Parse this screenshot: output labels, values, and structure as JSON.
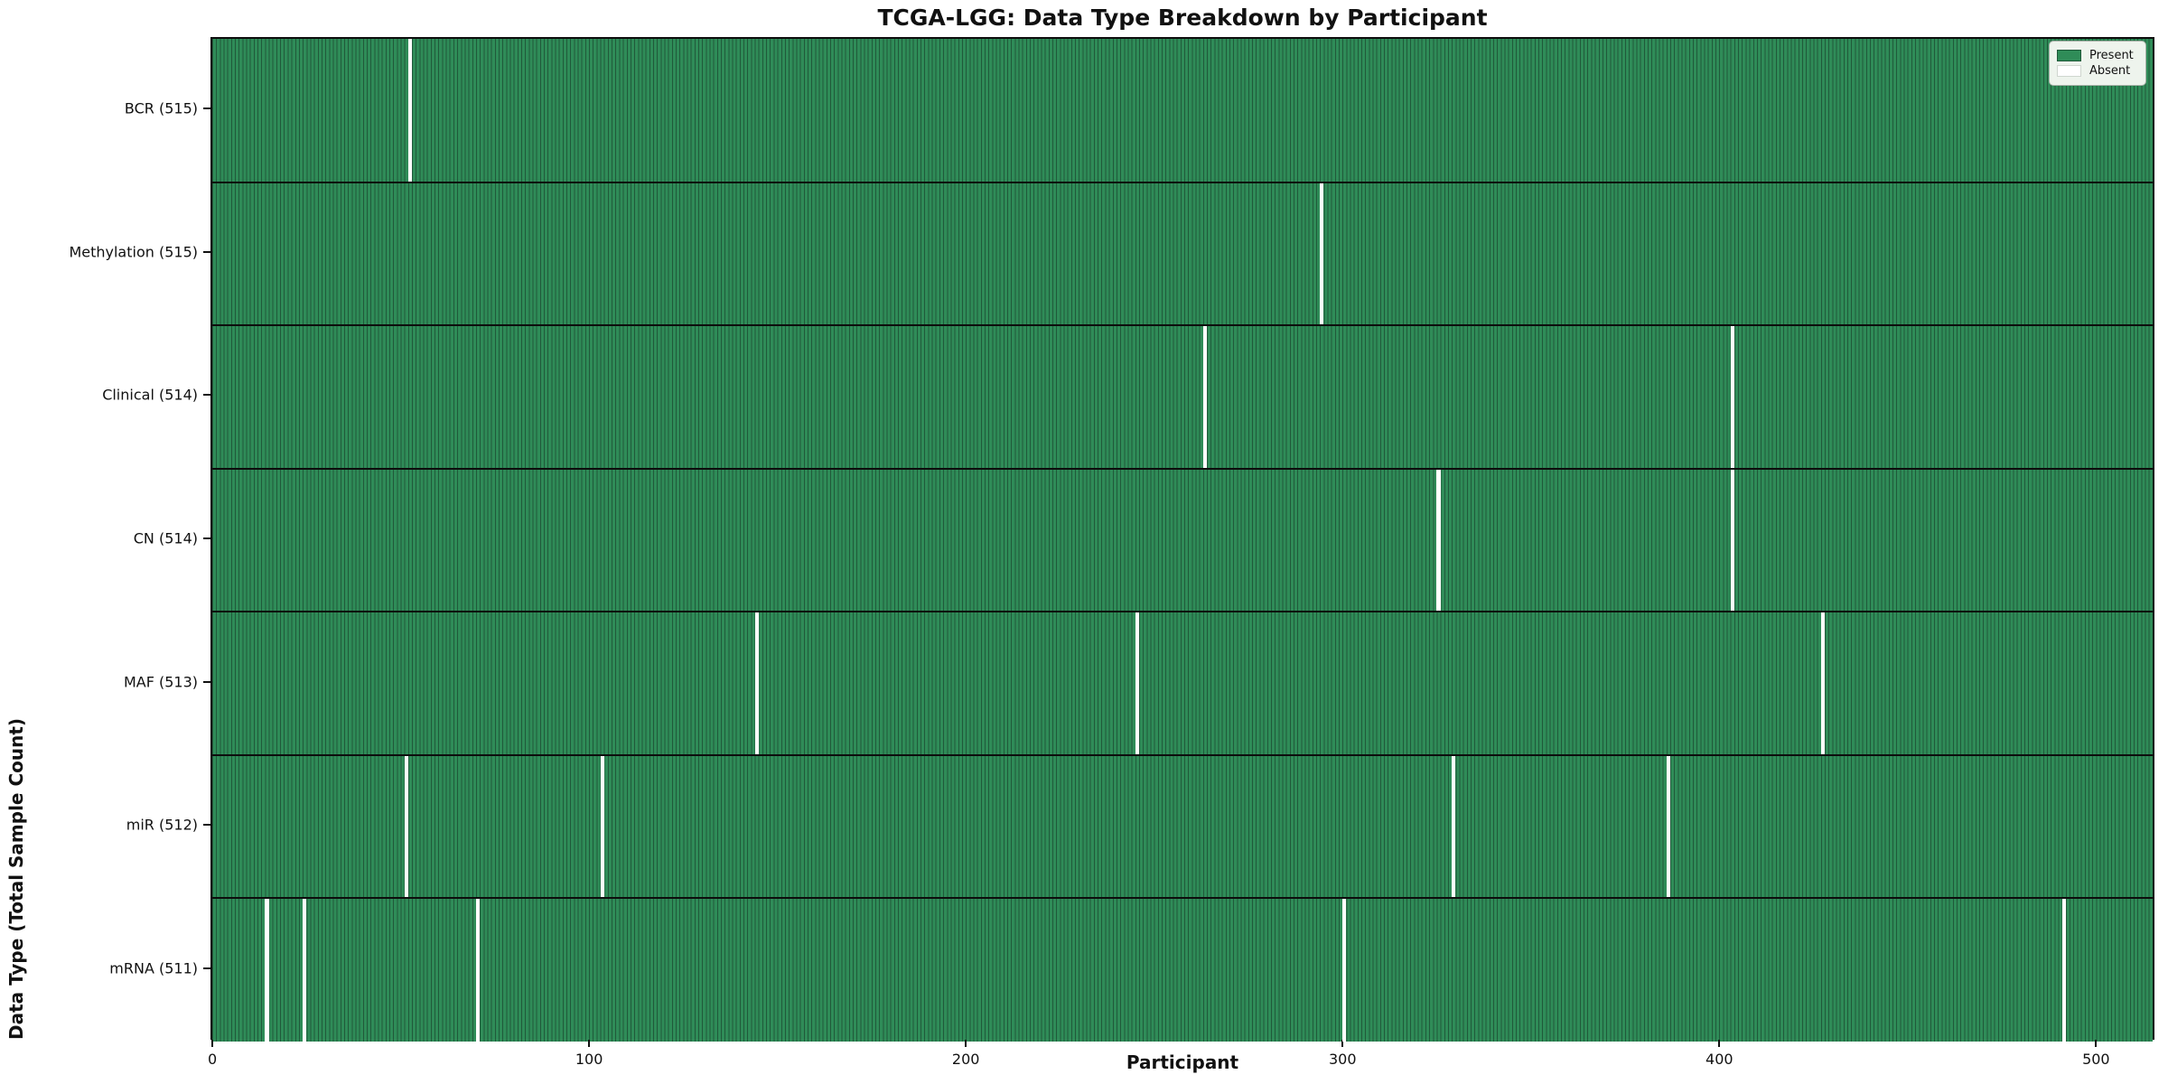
{
  "title": "TCGA-LGG: Data Type Breakdown by Participant",
  "xlabel": "Participant",
  "ylabel": "Data Type (Total Sample Count)",
  "legend": {
    "present_label": "Present",
    "absent_label": "Absent"
  },
  "colors": {
    "present": "#2f8c58",
    "bar_edge": "#20593a",
    "absent": "#ffffff",
    "separator": "#0d0d0d",
    "legend_bg": "#eef4ed",
    "legend_border": "#a9b2a9"
  },
  "chart_data": {
    "type": "heatmap",
    "title": "TCGA-LGG: Data Type Breakdown by Participant",
    "xlabel": "Participant",
    "ylabel": "Data Type (Total Sample Count)",
    "n_participants": 516,
    "xlim": [
      0,
      516
    ],
    "x_ticks": [
      0,
      100,
      200,
      300,
      400,
      500
    ],
    "grid": false,
    "legend_entries": [
      "Present",
      "Absent"
    ],
    "legend_position": "upper right",
    "rows": [
      {
        "label": "BCR (515)",
        "data_type": "BCR",
        "present_count": 515,
        "absent_participants": [
          52
        ]
      },
      {
        "label": "Methylation (515)",
        "data_type": "Methylation",
        "present_count": 515,
        "absent_participants": [
          294
        ]
      },
      {
        "label": "Clinical (514)",
        "data_type": "Clinical",
        "present_count": 514,
        "absent_participants": [
          263,
          403
        ]
      },
      {
        "label": "CN (514)",
        "data_type": "CN",
        "present_count": 514,
        "absent_participants": [
          325,
          403
        ]
      },
      {
        "label": "MAF (513)",
        "data_type": "MAF",
        "present_count": 513,
        "absent_participants": [
          144,
          245,
          427
        ]
      },
      {
        "label": "miR (512)",
        "data_type": "miR",
        "present_count": 512,
        "absent_participants": [
          51,
          103,
          329,
          386
        ]
      },
      {
        "label": "mRNA (511)",
        "data_type": "mRNA",
        "present_count": 511,
        "absent_participants": [
          14,
          24,
          70,
          300,
          491
        ]
      }
    ]
  }
}
